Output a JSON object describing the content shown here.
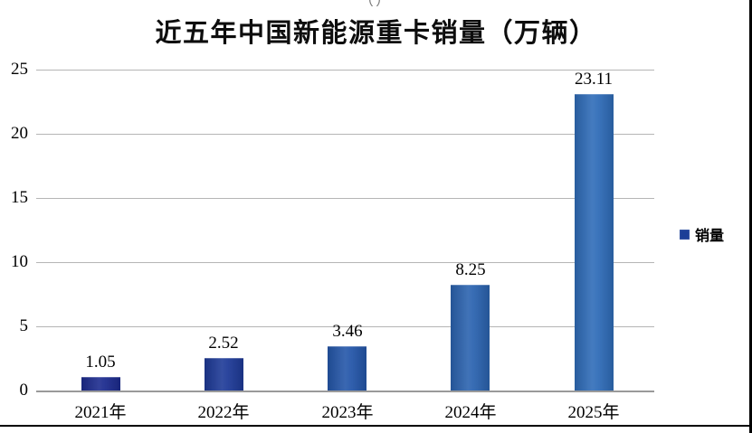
{
  "chart_data": {
    "type": "bar",
    "title": "近五年中国新能源重卡销量（万辆）",
    "series_name": "销量",
    "categories": [
      "2021年",
      "2022年",
      "2023年",
      "2024年",
      "2025年"
    ],
    "values": [
      1.05,
      2.52,
      3.46,
      8.25,
      23.11
    ],
    "data_labels": [
      "1.05",
      "2.52",
      "3.46",
      "8.25",
      "23.11"
    ],
    "ylim": [
      0,
      25
    ],
    "yticks": [
      0,
      5,
      10,
      15,
      20,
      25
    ],
    "grid": true,
    "legend_position": "right",
    "bar_colors": [
      "#1c2b8e",
      "#1e3a97",
      "#2456a9",
      "#2b63af",
      "#2f6cb8"
    ],
    "legend_swatch_color": "#1b3f97"
  }
}
